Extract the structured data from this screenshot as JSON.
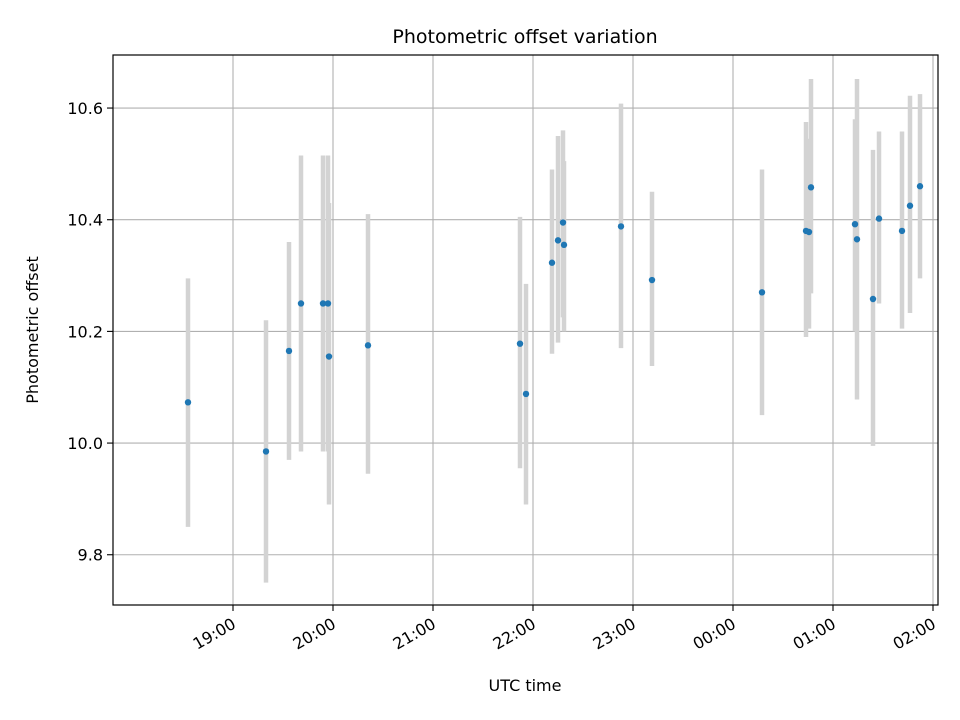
{
  "chart_data": {
    "type": "scatter",
    "title": "Photometric offset variation",
    "xlabel": "UTC time",
    "ylabel": "Photometric offset",
    "x_unit": "UTC hours (continuous; values above 24 are after midnight)",
    "xlim": [
      17.8,
      26.05
    ],
    "ylim": [
      9.71,
      10.695
    ],
    "x_ticks": [
      {
        "label": "19:00",
        "value": 19
      },
      {
        "label": "20:00",
        "value": 20
      },
      {
        "label": "21:00",
        "value": 21
      },
      {
        "label": "22:00",
        "value": 22
      },
      {
        "label": "23:00",
        "value": 23
      },
      {
        "label": "00:00",
        "value": 24
      },
      {
        "label": "01:00",
        "value": 25
      },
      {
        "label": "02:00",
        "value": 26
      }
    ],
    "y_ticks": [
      {
        "label": "9.8",
        "value": 9.8
      },
      {
        "label": "10.0",
        "value": 10.0
      },
      {
        "label": "10.2",
        "value": 10.2
      },
      {
        "label": "10.4",
        "value": 10.4
      },
      {
        "label": "10.6",
        "value": 10.6
      }
    ],
    "grid": true,
    "point_color": "#1f77b4",
    "errorbar_color": "#d3d3d3",
    "points": [
      {
        "x": 18.55,
        "y": 10.073,
        "low": 9.85,
        "high": 10.295
      },
      {
        "x": 19.33,
        "y": 9.985,
        "low": 9.75,
        "high": 10.22
      },
      {
        "x": 19.56,
        "y": 10.165,
        "low": 9.97,
        "high": 10.36
      },
      {
        "x": 19.68,
        "y": 10.25,
        "low": 9.985,
        "high": 10.515
      },
      {
        "x": 19.9,
        "y": 10.25,
        "low": 9.985,
        "high": 10.515
      },
      {
        "x": 19.95,
        "y": 10.25,
        "low": 9.985,
        "high": 10.515
      },
      {
        "x": 19.96,
        "y": 10.155,
        "low": 9.89,
        "high": 10.43
      },
      {
        "x": 20.35,
        "y": 10.175,
        "low": 9.945,
        "high": 10.41
      },
      {
        "x": 21.87,
        "y": 10.178,
        "low": 9.955,
        "high": 10.405
      },
      {
        "x": 21.93,
        "y": 10.088,
        "low": 9.89,
        "high": 10.285
      },
      {
        "x": 22.19,
        "y": 10.323,
        "low": 10.16,
        "high": 10.49
      },
      {
        "x": 22.25,
        "y": 10.363,
        "low": 10.18,
        "high": 10.55
      },
      {
        "x": 22.3,
        "y": 10.395,
        "low": 10.225,
        "high": 10.56
      },
      {
        "x": 22.31,
        "y": 10.355,
        "low": 10.2,
        "high": 10.505
      },
      {
        "x": 22.88,
        "y": 10.388,
        "low": 10.17,
        "high": 10.608
      },
      {
        "x": 23.19,
        "y": 10.292,
        "low": 10.138,
        "high": 10.45
      },
      {
        "x": 24.29,
        "y": 10.27,
        "low": 10.05,
        "high": 10.49
      },
      {
        "x": 24.73,
        "y": 10.38,
        "low": 10.19,
        "high": 10.575
      },
      {
        "x": 24.76,
        "y": 10.378,
        "low": 10.205,
        "high": 10.545
      },
      {
        "x": 24.78,
        "y": 10.458,
        "low": 10.268,
        "high": 10.652
      },
      {
        "x": 25.22,
        "y": 10.392,
        "low": 10.2,
        "high": 10.58
      },
      {
        "x": 25.24,
        "y": 10.365,
        "low": 10.078,
        "high": 10.652
      },
      {
        "x": 25.4,
        "y": 10.258,
        "low": 9.995,
        "high": 10.525
      },
      {
        "x": 25.46,
        "y": 10.402,
        "low": 10.25,
        "high": 10.558
      },
      {
        "x": 25.69,
        "y": 10.38,
        "low": 10.205,
        "high": 10.558
      },
      {
        "x": 25.77,
        "y": 10.425,
        "low": 10.233,
        "high": 10.622
      },
      {
        "x": 25.87,
        "y": 10.46,
        "low": 10.295,
        "high": 10.625
      }
    ]
  }
}
